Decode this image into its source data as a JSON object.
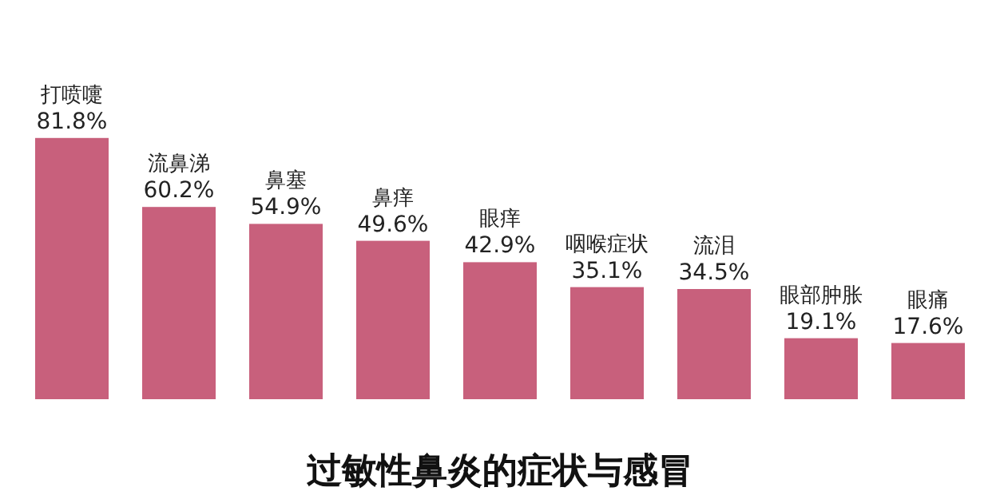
{
  "chart_data": {
    "type": "bar",
    "title": "过敏性鼻炎的症状与感冒",
    "categories": [
      "打喷嚏",
      "流鼻涕",
      "鼻塞",
      "鼻痒",
      "眼痒",
      "咽喉症状",
      "流泪",
      "眼部肿胀",
      "眼痛"
    ],
    "values": [
      81.8,
      60.2,
      54.9,
      49.6,
      42.9,
      35.1,
      34.5,
      19.1,
      17.6
    ],
    "value_labels": [
      "81.8%",
      "60.2%",
      "54.9%",
      "49.6%",
      "42.9%",
      "35.1%",
      "34.5%",
      "19.1%",
      "17.6%"
    ],
    "color": "#c8607c"
  }
}
